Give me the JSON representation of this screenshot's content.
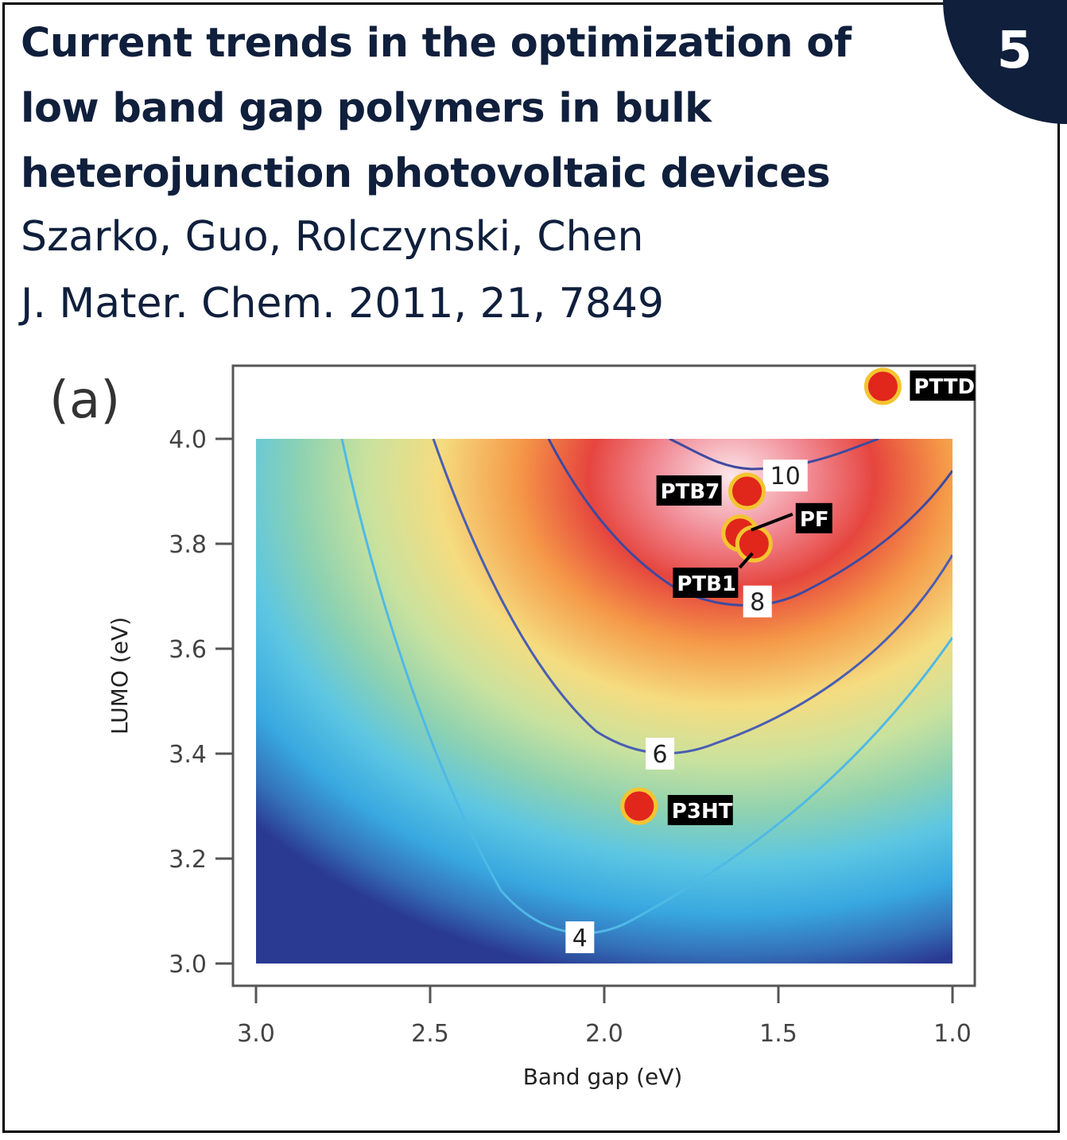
{
  "header": {
    "title_lines": [
      "Current trends in the optimization of",
      "low band gap polymers in bulk",
      "heterojunction photovoltaic devices"
    ],
    "authors": "Szarko, Guo, Rolczynski, Chen",
    "journal": "J. Mater. Chem. 2011, 21, 7849",
    "badge": "5"
  },
  "chart_data": {
    "type": "heatmap",
    "panel_label": "(a)",
    "title": "",
    "xlabel": "Band gap (eV)",
    "ylabel": "LUMO (eV)",
    "xlim": [
      3.0,
      1.0
    ],
    "ylim": [
      3.0,
      4.0
    ],
    "x_reversed": true,
    "x_ticks": [
      "3.0",
      "2.5",
      "2.0",
      "1.5",
      "1.0"
    ],
    "y_ticks": [
      "3.0",
      "3.2",
      "3.4",
      "3.6",
      "3.8",
      "4.0"
    ],
    "contour_labels": [
      {
        "text": "4",
        "x": 2.07,
        "y": 3.05
      },
      {
        "text": "6",
        "x": 1.84,
        "y": 3.4
      },
      {
        "text": "8",
        "x": 1.56,
        "y": 3.69
      },
      {
        "text": "10",
        "x": 1.48,
        "y": 3.93
      }
    ],
    "colors": {
      "low": "#2a3a92",
      "mid": "#96d2a8",
      "high": "#e0323c",
      "contour_high": "#3f4aa0",
      "contour_low": "#4fb9e6",
      "marker": "#e1261c",
      "marker_ring": "#f4c430"
    },
    "points": [
      {
        "name": "PTTD",
        "x": 1.2,
        "y": 4.1
      },
      {
        "name": "PTB7",
        "x": 1.59,
        "y": 3.9
      },
      {
        "name": "PF",
        "x": 1.61,
        "y": 3.82
      },
      {
        "name": "PTB1",
        "x": 1.57,
        "y": 3.8
      },
      {
        "name": "P3HT",
        "x": 1.9,
        "y": 3.3
      }
    ]
  }
}
